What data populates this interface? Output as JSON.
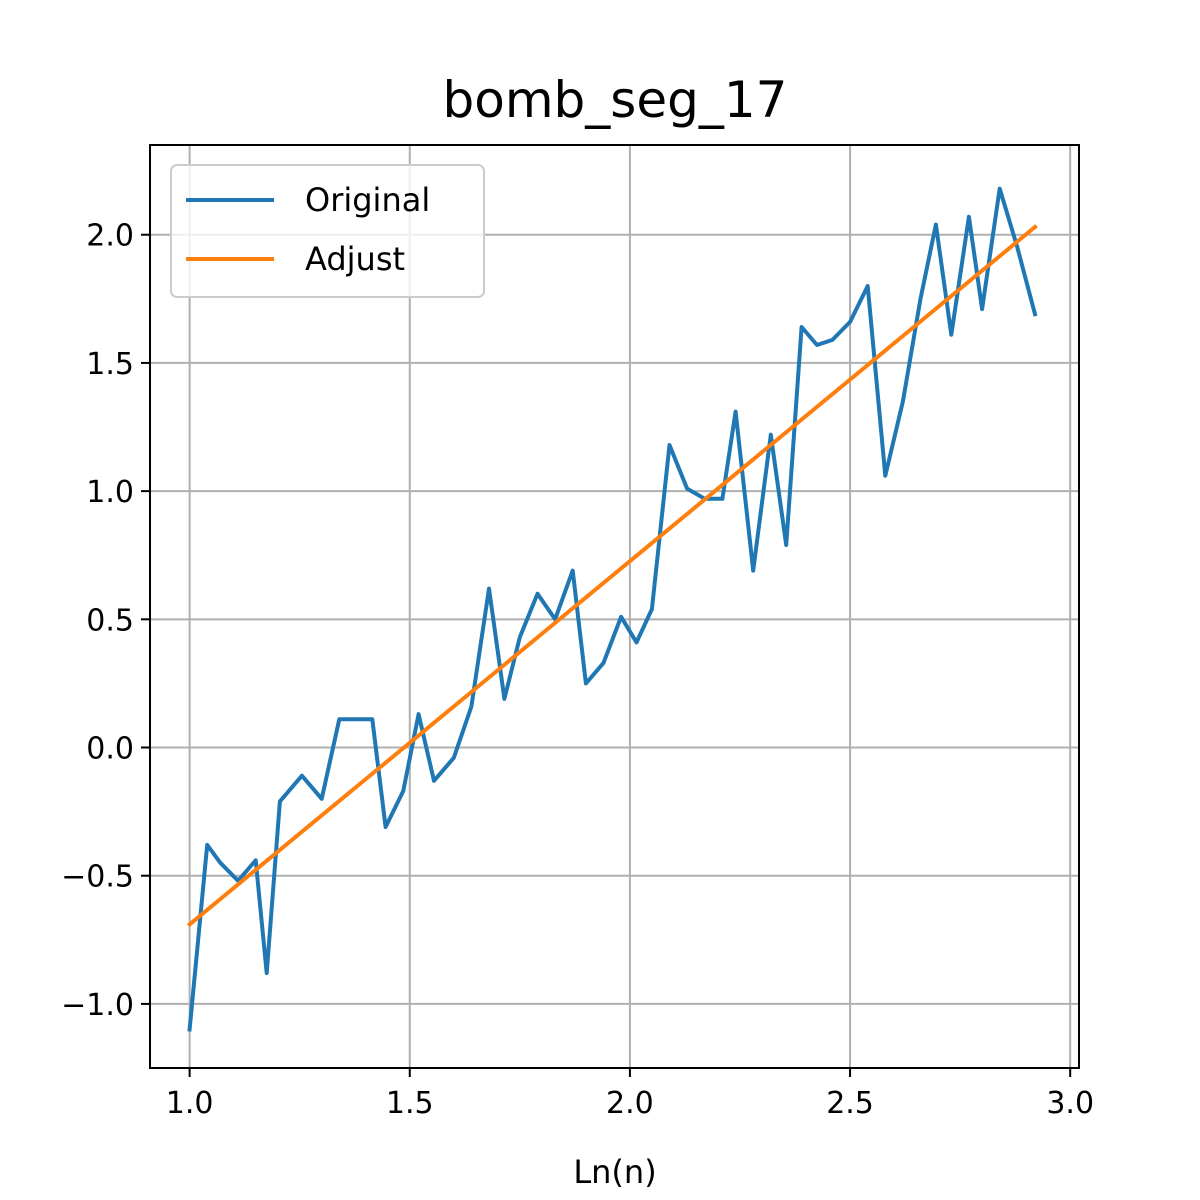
{
  "chart_data": {
    "type": "line",
    "title": "bomb_seg_17",
    "xlabel": "Ln(n)",
    "ylabel": "",
    "xlim": [
      0.91,
      3.02
    ],
    "ylim": [
      -1.25,
      2.35
    ],
    "xticks": [
      1.0,
      1.5,
      2.0,
      2.5,
      3.0
    ],
    "xtick_labels": [
      "1.0",
      "1.5",
      "2.0",
      "2.5",
      "3.0"
    ],
    "yticks": [
      -1.0,
      -0.5,
      0.0,
      0.5,
      1.0,
      1.5,
      2.0
    ],
    "ytick_labels": [
      "−1.0",
      "−0.5",
      "0.0",
      "0.5",
      "1.0",
      "1.5",
      "2.0"
    ],
    "grid": true,
    "legend_position": "top-left",
    "series": [
      {
        "name": "Original",
        "color": "#1f77b4",
        "x": [
          1.0,
          1.04,
          1.07,
          1.11,
          1.15,
          1.175,
          1.205,
          1.255,
          1.3,
          1.34,
          1.415,
          1.445,
          1.485,
          1.52,
          1.555,
          1.6,
          1.64,
          1.68,
          1.715,
          1.75,
          1.79,
          1.83,
          1.87,
          1.9,
          1.94,
          1.98,
          2.015,
          2.05,
          2.09,
          2.13,
          2.17,
          2.21,
          2.24,
          2.28,
          2.32,
          2.355,
          2.39,
          2.425,
          2.46,
          2.5,
          2.54,
          2.58,
          2.62,
          2.66,
          2.695,
          2.73,
          2.77,
          2.8,
          2.84,
          2.88,
          2.92
        ],
        "y": [
          -1.1,
          -0.38,
          -0.45,
          -0.52,
          -0.44,
          -0.88,
          -0.21,
          -0.11,
          -0.2,
          0.11,
          0.11,
          -0.31,
          -0.17,
          0.13,
          -0.13,
          -0.04,
          0.16,
          0.62,
          0.19,
          0.43,
          0.6,
          0.5,
          0.69,
          0.25,
          0.33,
          0.51,
          0.41,
          0.54,
          1.18,
          1.01,
          0.97,
          0.97,
          1.31,
          0.69,
          1.22,
          0.79,
          1.64,
          1.57,
          1.59,
          1.66,
          1.8,
          1.06,
          1.35,
          1.75,
          2.04,
          1.61,
          2.07,
          1.71,
          2.18,
          1.95,
          1.69
        ]
      },
      {
        "name": "Adjust",
        "color": "#ff7f0e",
        "x": [
          1.0,
          2.92
        ],
        "y": [
          -0.69,
          2.03
        ]
      }
    ]
  }
}
